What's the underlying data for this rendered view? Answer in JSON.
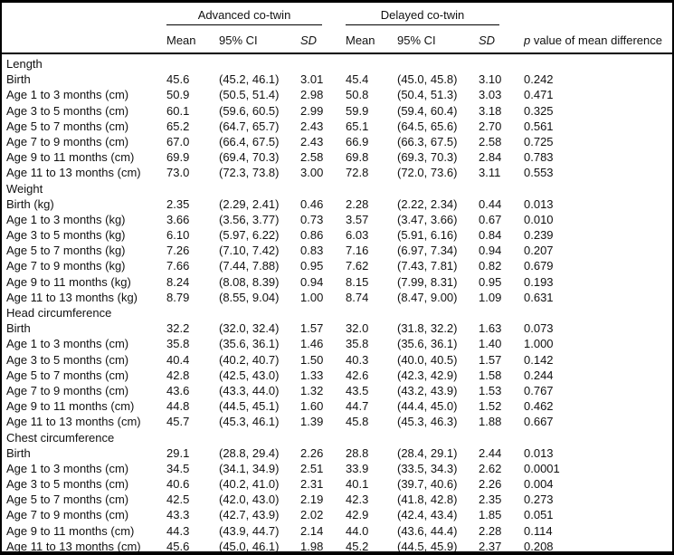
{
  "colors": {
    "border": "#000000",
    "text": "#111111",
    "background": "#ffffff"
  },
  "table": {
    "groups": [
      {
        "label": "Advanced co-twin"
      },
      {
        "label": "Delayed co-twin"
      }
    ],
    "columns": {
      "mean": "Mean",
      "ci": "95% CI",
      "sd": "SD"
    },
    "p_header": {
      "symbol": "p",
      "text": " value of mean difference"
    },
    "cell_keys": [
      "advanced-mean",
      "advanced-ci",
      "advanced-sd",
      "delayed-mean",
      "delayed-ci",
      "delayed-sd",
      "p-value"
    ],
    "sections": [
      {
        "name": "Length",
        "rows": [
          {
            "label": "Birth",
            "cells": [
              "45.6",
              "(45.2, 46.1)",
              "3.01",
              "45.4",
              "(45.0, 45.8)",
              "3.10",
              "0.242"
            ]
          },
          {
            "label": "Age 1 to 3 months (cm)",
            "cells": [
              "50.9",
              "(50.5, 51.4)",
              "2.98",
              "50.8",
              "(50.4, 51.3)",
              "3.03",
              "0.471"
            ]
          },
          {
            "label": "Age 3 to 5 months (cm)",
            "cells": [
              "60.1",
              "(59.6, 60.5)",
              "2.99",
              "59.9",
              "(59.4, 60.4)",
              "3.18",
              "0.325"
            ]
          },
          {
            "label": "Age 5 to 7 months (cm)",
            "cells": [
              "65.2",
              "(64.7, 65.7)",
              "2.43",
              "65.1",
              "(64.5, 65.6)",
              "2.70",
              "0.561"
            ]
          },
          {
            "label": "Age 7 to 9 months (cm)",
            "cells": [
              "67.0",
              "(66.4, 67.5)",
              "2.43",
              "66.9",
              "(66.3, 67.5)",
              "2.58",
              "0.725"
            ]
          },
          {
            "label": "Age 9 to 11 months (cm)",
            "cells": [
              "69.9",
              "(69.4, 70.3)",
              "2.58",
              "69.8",
              "(69.3, 70.3)",
              "2.84",
              "0.783"
            ]
          },
          {
            "label": "Age 11 to 13 months (cm)",
            "cells": [
              "73.0",
              "(72.3, 73.8)",
              "3.00",
              "72.8",
              "(72.0, 73.6)",
              "3.11",
              "0.553"
            ]
          }
        ]
      },
      {
        "name": "Weight",
        "rows": [
          {
            "label": "Birth (kg)",
            "cells": [
              "2.35",
              "(2.29, 2.41)",
              "0.46",
              "2.28",
              "(2.22, 2.34)",
              "0.44",
              "0.013"
            ]
          },
          {
            "label": "Age 1 to 3 months (kg)",
            "cells": [
              "3.66",
              "(3.56, 3.77)",
              "0.73",
              "3.57",
              "(3.47, 3.66)",
              "0.67",
              "0.010"
            ]
          },
          {
            "label": "Age 3 to 5 months (kg)",
            "cells": [
              "6.10",
              "(5.97, 6.22)",
              "0.86",
              "6.03",
              "(5.91, 6.16)",
              "0.84",
              "0.239"
            ]
          },
          {
            "label": "Age 5 to 7 months (kg)",
            "cells": [
              "7.26",
              "(7.10, 7.42)",
              "0.83",
              "7.16",
              "(6.97, 7.34)",
              "0.94",
              "0.207"
            ]
          },
          {
            "label": "Age 7 to 9 months (kg)",
            "cells": [
              "7.66",
              "(7.44, 7.88)",
              "0.95",
              "7.62",
              "(7.43, 7.81)",
              "0.82",
              "0.679"
            ]
          },
          {
            "label": "Age 9 to 11 months (kg)",
            "cells": [
              "8.24",
              "(8.08, 8.39)",
              "0.94",
              "8.15",
              "(7.99, 8.31)",
              "0.95",
              "0.193"
            ]
          },
          {
            "label": "Age 11 to 13 months (kg)",
            "cells": [
              "8.79",
              "(8.55, 9.04)",
              "1.00",
              "8.74",
              "(8.47, 9.00)",
              "1.09",
              "0.631"
            ]
          }
        ]
      },
      {
        "name": "Head circumference",
        "rows": [
          {
            "label": "Birth",
            "cells": [
              "32.2",
              "(32.0, 32.4)",
              "1.57",
              "32.0",
              "(31.8, 32.2)",
              "1.63",
              "0.073"
            ]
          },
          {
            "label": "Age 1 to 3 months (cm)",
            "cells": [
              "35.8",
              "(35.6, 36.1)",
              "1.46",
              "35.8",
              "(35.6, 36.1)",
              "1.40",
              "1.000"
            ]
          },
          {
            "label": "Age 3 to 5 months (cm)",
            "cells": [
              "40.4",
              "(40.2, 40.7)",
              "1.50",
              "40.3",
              "(40.0, 40.5)",
              "1.57",
              "0.142"
            ]
          },
          {
            "label": "Age 5 to 7 months (cm)",
            "cells": [
              "42.8",
              "(42.5, 43.0)",
              "1.33",
              "42.6",
              "(42.3, 42.9)",
              "1.58",
              "0.244"
            ]
          },
          {
            "label": "Age 7 to 9 months (cm)",
            "cells": [
              "43.6",
              "(43.3, 44.0)",
              "1.32",
              "43.5",
              "(43.2, 43.9)",
              "1.53",
              "0.767"
            ]
          },
          {
            "label": "Age 9 to 11 months (cm)",
            "cells": [
              "44.8",
              "(44.5, 45.1)",
              "1.60",
              "44.7",
              "(44.4, 45.0)",
              "1.52",
              "0.462"
            ]
          },
          {
            "label": "Age 11 to 13 months (cm)",
            "cells": [
              "45.7",
              "(45.3, 46.1)",
              "1.39",
              "45.8",
              "(45.3, 46.3)",
              "1.88",
              "0.667"
            ]
          }
        ]
      },
      {
        "name": "Chest circumference",
        "rows": [
          {
            "label": "Birth",
            "cells": [
              "29.1",
              "(28.8, 29.4)",
              "2.26",
              "28.8",
              "(28.4, 29.1)",
              "2.44",
              "0.013"
            ]
          },
          {
            "label": "Age 1 to 3 months (cm)",
            "cells": [
              "34.5",
              "(34.1, 34.9)",
              "2.51",
              "33.9",
              "(33.5, 34.3)",
              "2.62",
              "0.0001"
            ]
          },
          {
            "label": "Age 3 to 5 months (cm)",
            "cells": [
              "40.6",
              "(40.2, 41.0)",
              "2.31",
              "40.1",
              "(39.7, 40.6)",
              "2.26",
              "0.004"
            ]
          },
          {
            "label": "Age 5 to 7 months (cm)",
            "cells": [
              "42.5",
              "(42.0, 43.0)",
              "2.19",
              "42.3",
              "(41.8, 42.8)",
              "2.35",
              "0.273"
            ]
          },
          {
            "label": "Age 7 to 9 months (cm)",
            "cells": [
              "43.3",
              "(42.7, 43.9)",
              "2.02",
              "42.9",
              "(42.4, 43.4)",
              "1.85",
              "0.051"
            ]
          },
          {
            "label": "Age 9 to 11 months (cm)",
            "cells": [
              "44.3",
              "(43.9, 44.7)",
              "2.14",
              "44.0",
              "(43.6, 44.4)",
              "2.28",
              "0.114"
            ]
          },
          {
            "label": "Age 11 to 13 months (cm)",
            "cells": [
              "45.6",
              "(45.0, 46.1)",
              "1.98",
              "45.2",
              "(44.5, 45.9)",
              "2.37",
              "0.208"
            ]
          }
        ]
      }
    ]
  }
}
